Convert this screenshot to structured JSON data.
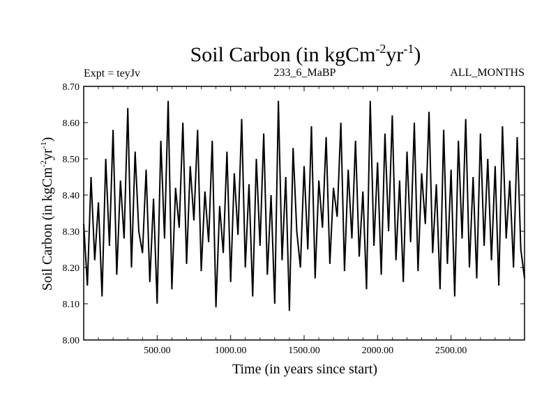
{
  "chart_data": {
    "type": "line",
    "title": {
      "main": "Soil Carbon (in kgCm",
      "sup1": "-2",
      "mid": "yr",
      "sup2": "-1",
      "end": ")"
    },
    "subtitle_left": "Expt = teyJv",
    "subtitle_center": "233_6_MaBP",
    "subtitle_right": "ALL_MONTHS",
    "xlabel": "Time (in years since start)",
    "ylabel": {
      "main": "Soil Carbon (in kgCm",
      "sup1": "-2",
      "mid": "yr",
      "sup2": "-1",
      "end": ")"
    },
    "xlim": [
      0,
      3000
    ],
    "ylim": [
      8.0,
      8.7
    ],
    "x_ticks": [
      500,
      1000,
      1500,
      2000,
      2500
    ],
    "x_tick_labels": [
      "500.00",
      "1000.00",
      "1500.00",
      "2000.00",
      "2500.00"
    ],
    "y_ticks": [
      8.0,
      8.1,
      8.2,
      8.3,
      8.4,
      8.5,
      8.6,
      8.7
    ],
    "y_tick_labels": [
      "8.00",
      "8.10",
      "8.20",
      "8.30",
      "8.40",
      "8.50",
      "8.60",
      "8.70"
    ],
    "grid": false,
    "line_color": "#000000",
    "series": [
      {
        "x": [
          0,
          25,
          50,
          75,
          100,
          125,
          150,
          175,
          200,
          225,
          250,
          275,
          300,
          325,
          350,
          375,
          400,
          425,
          450,
          475,
          500,
          525,
          550,
          575,
          600,
          625,
          650,
          675,
          700,
          725,
          750,
          775,
          800,
          825,
          850,
          875,
          900,
          925,
          950,
          975,
          1000,
          1025,
          1050,
          1075,
          1100,
          1125,
          1150,
          1175,
          1200,
          1225,
          1250,
          1275,
          1300,
          1325,
          1350,
          1375,
          1400,
          1425,
          1450,
          1475,
          1500,
          1525,
          1550,
          1575,
          1600,
          1625,
          1650,
          1675,
          1700,
          1725,
          1750,
          1775,
          1800,
          1825,
          1850,
          1875,
          1900,
          1925,
          1950,
          1975,
          2000,
          2025,
          2050,
          2075,
          2100,
          2125,
          2150,
          2175,
          2200,
          2225,
          2250,
          2275,
          2300,
          2325,
          2350,
          2375,
          2400,
          2425,
          2450,
          2475,
          2500,
          2525,
          2550,
          2575,
          2600,
          2625,
          2650,
          2675,
          2700,
          2725,
          2750,
          2775,
          2800,
          2825,
          2850,
          2875,
          2900,
          2925,
          2950,
          2975,
          3000
        ],
        "y": [
          8.32,
          8.15,
          8.45,
          8.22,
          8.38,
          8.12,
          8.5,
          8.26,
          8.58,
          8.18,
          8.44,
          8.28,
          8.64,
          8.2,
          8.52,
          8.3,
          8.24,
          8.47,
          8.16,
          8.39,
          8.1,
          8.55,
          8.28,
          8.66,
          8.14,
          8.42,
          8.31,
          8.6,
          8.21,
          8.48,
          8.33,
          8.58,
          8.19,
          8.41,
          8.27,
          8.55,
          8.09,
          8.37,
          8.24,
          8.52,
          8.16,
          8.46,
          8.29,
          8.61,
          8.2,
          8.43,
          8.12,
          8.5,
          8.26,
          8.57,
          8.18,
          8.4,
          8.1,
          8.66,
          8.22,
          8.45,
          8.08,
          8.53,
          8.3,
          8.2,
          8.48,
          8.25,
          8.59,
          8.17,
          8.44,
          8.31,
          8.56,
          8.21,
          8.42,
          8.34,
          8.6,
          8.19,
          8.47,
          8.28,
          8.55,
          8.23,
          8.41,
          8.14,
          8.66,
          8.26,
          8.49,
          8.18,
          8.57,
          8.3,
          8.62,
          8.22,
          8.44,
          8.16,
          8.52,
          8.27,
          8.6,
          8.19,
          8.46,
          8.32,
          8.63,
          8.24,
          8.43,
          8.14,
          8.58,
          8.21,
          8.47,
          8.12,
          8.55,
          8.28,
          8.61,
          8.2,
          8.45,
          8.17,
          8.57,
          8.26,
          8.5,
          8.22,
          8.48,
          8.15,
          8.59,
          8.28,
          8.44,
          8.2,
          8.56,
          8.25,
          8.17
        ]
      }
    ]
  }
}
